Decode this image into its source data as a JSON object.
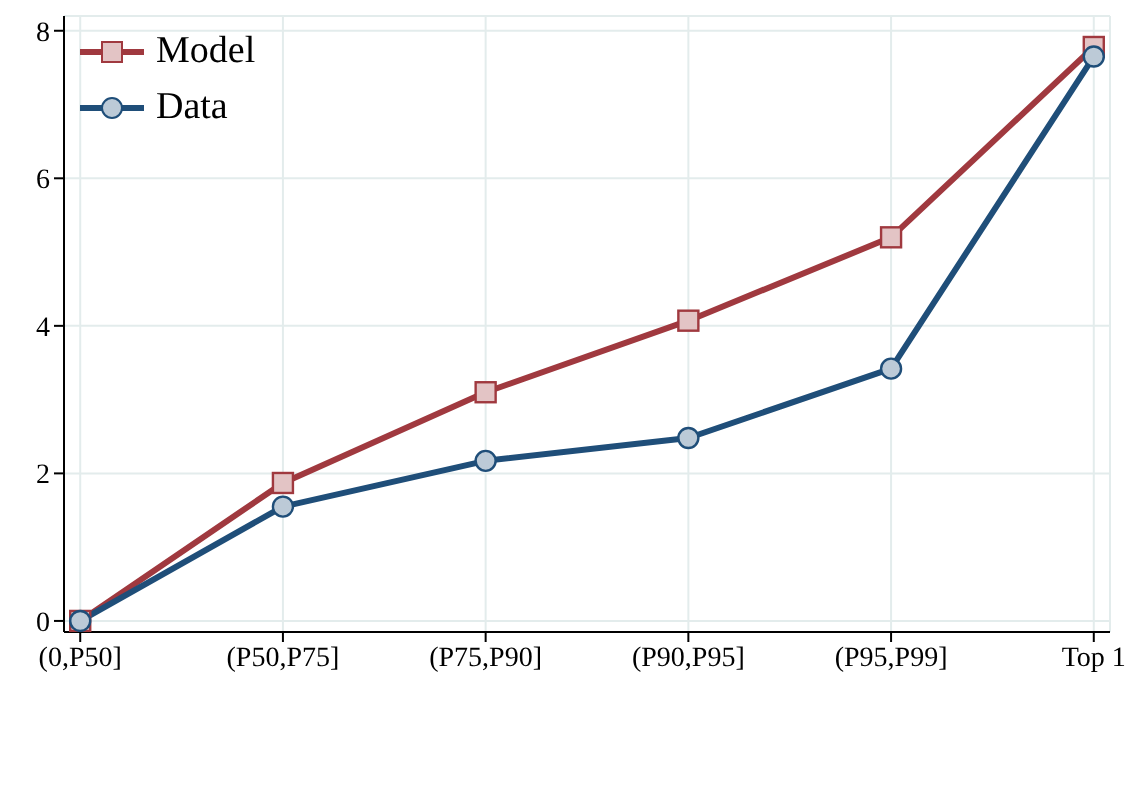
{
  "chart_data": {
    "type": "line",
    "categories": [
      "(0,P50]",
      "(P50,P75]",
      "(P75,P90]",
      "(P90,P95]",
      "(P95,P99]",
      "Top 1"
    ],
    "series": [
      {
        "name": "Model",
        "color": "#a0393f",
        "marker": "square",
        "values": [
          0,
          1.87,
          3.1,
          4.07,
          5.2,
          7.78
        ]
      },
      {
        "name": "Data",
        "color": "#1f4e79",
        "marker": "circle",
        "values": [
          0,
          1.55,
          2.17,
          2.48,
          3.42,
          7.65
        ]
      }
    ],
    "ylim": [
      -0.15,
      8.2
    ],
    "yticks": [
      0,
      2,
      4,
      6,
      8
    ],
    "grid": true,
    "legend": "top left"
  }
}
